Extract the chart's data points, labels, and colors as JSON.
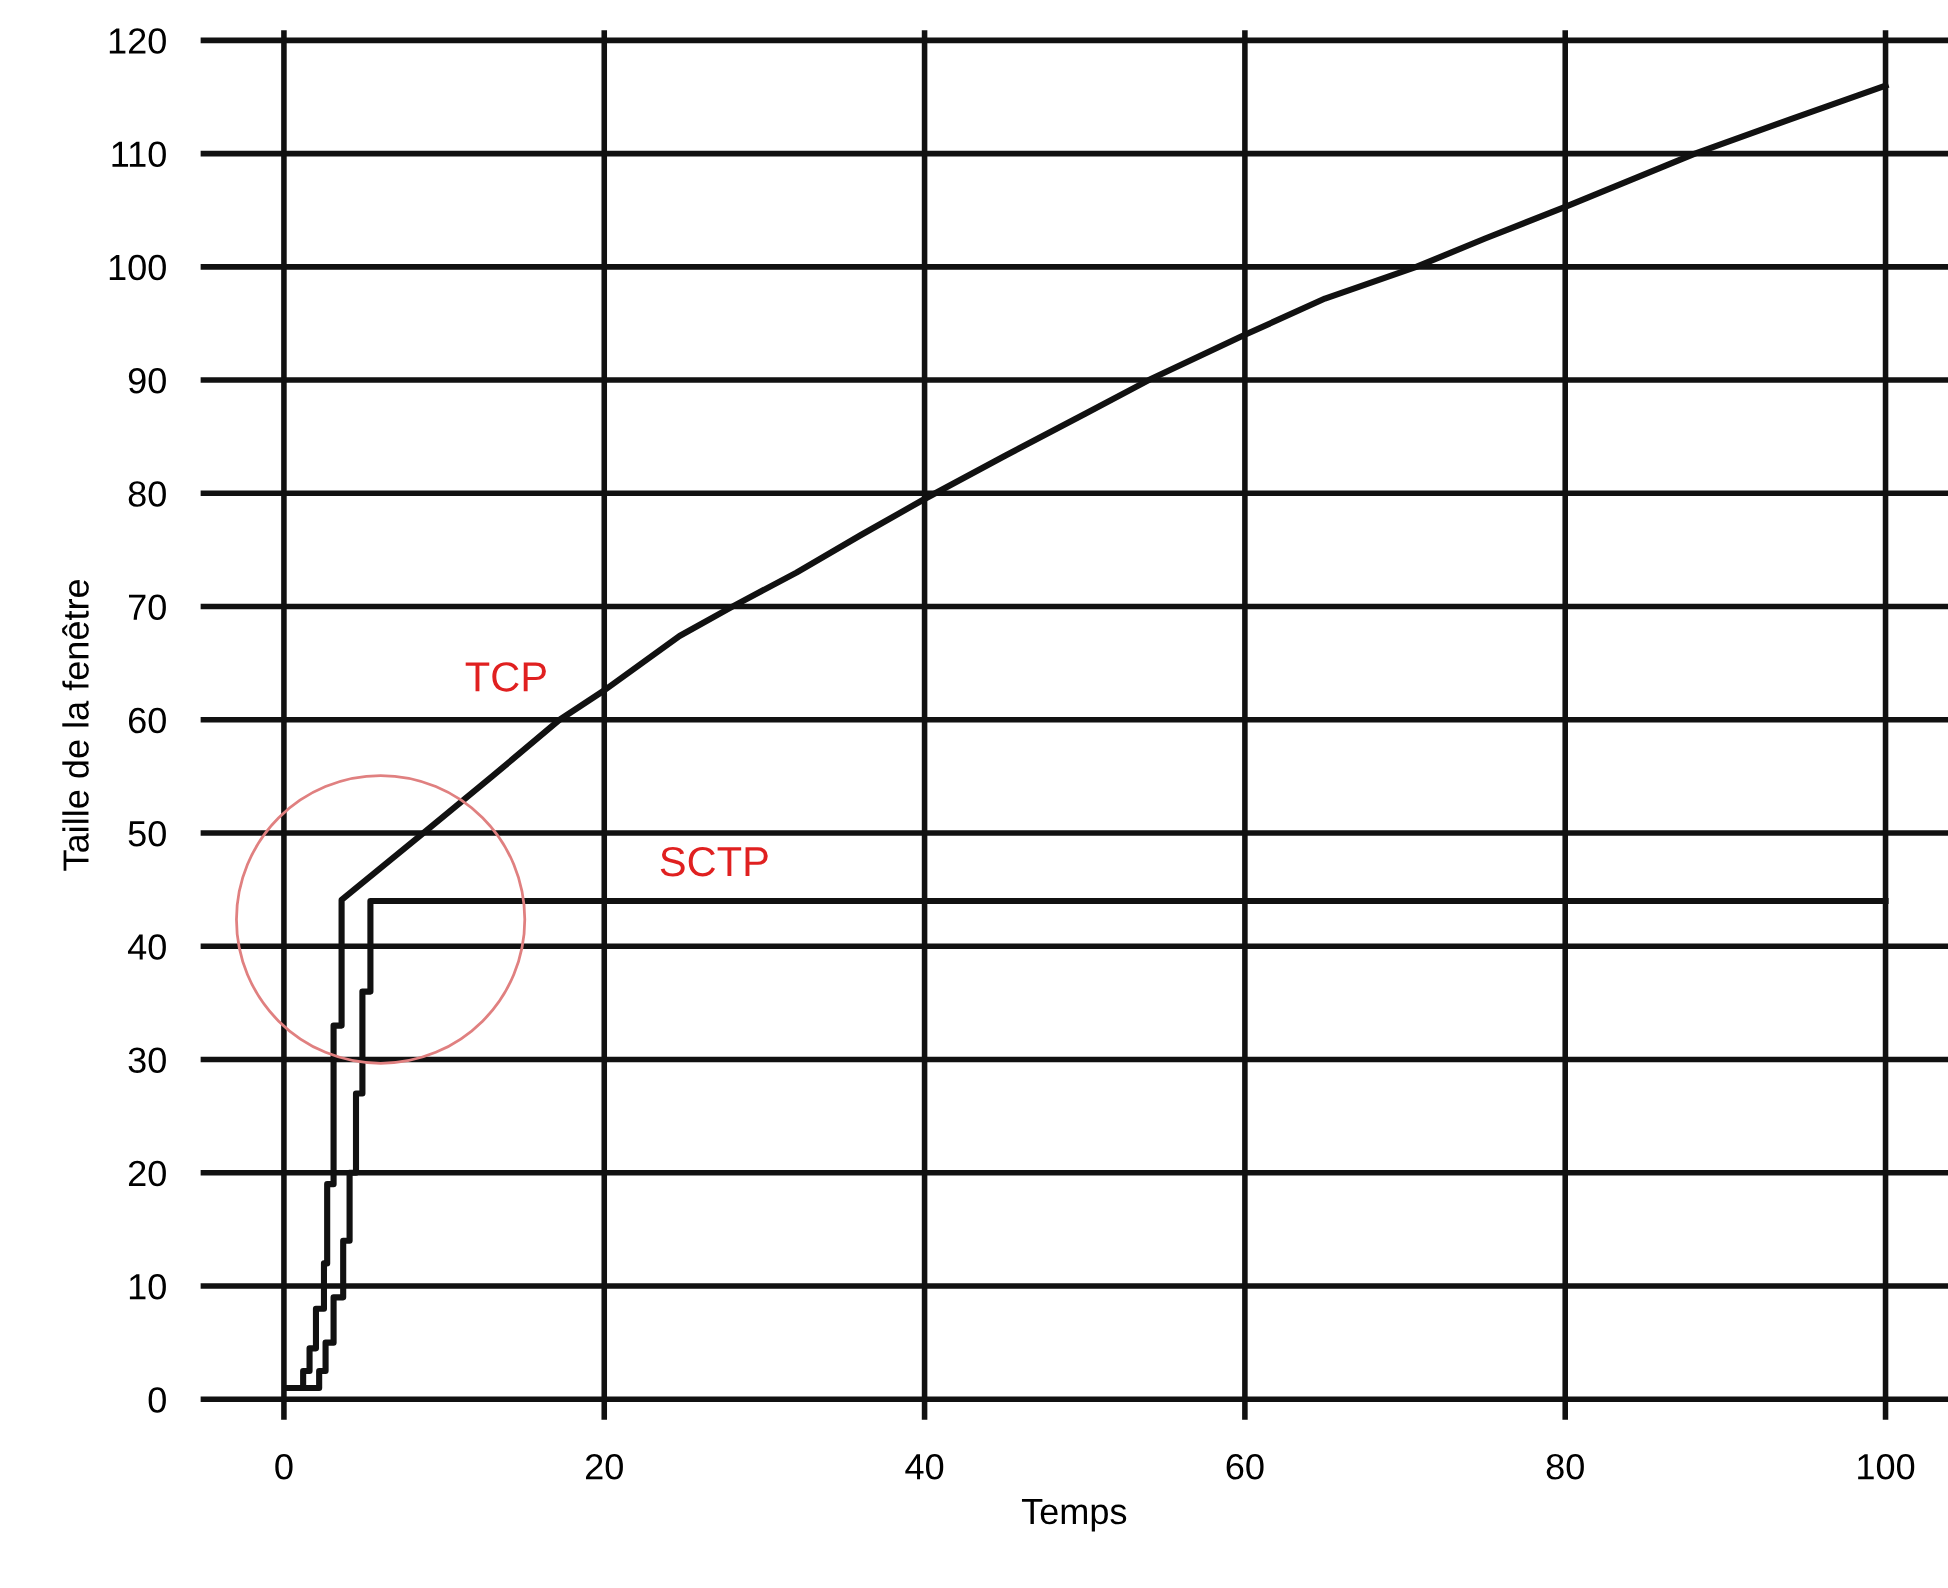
{
  "chart_data": {
    "type": "line",
    "xlabel": "Temps",
    "ylabel": "Taille de la fenêtre",
    "xlim": [
      -5.2,
      103.9
    ],
    "ylim": [
      -1.8,
      120.9
    ],
    "xticks": [
      0,
      20,
      40,
      60,
      80,
      100
    ],
    "yticks": [
      0,
      10,
      20,
      30,
      40,
      50,
      60,
      70,
      80,
      90,
      100,
      110,
      120
    ],
    "grid": true,
    "marker": "none",
    "line_style": "solid",
    "series": [
      {
        "name": "TCP",
        "color": "#111111",
        "x": [
          0.3,
          1.2,
          1.2,
          1.6,
          1.6,
          2.0,
          2.0,
          2.5,
          2.5,
          2.7,
          2.7,
          3.1,
          3.1,
          3.6,
          3.6,
          8.7,
          13,
          17.2,
          20,
          24.7,
          28,
          32,
          36,
          40,
          45,
          50,
          54,
          60,
          65,
          70.7,
          75,
          80,
          88.1,
          94,
          100
        ],
        "values": [
          1,
          1,
          2.5,
          2.5,
          4.5,
          4.5,
          8,
          8,
          12,
          12,
          19,
          19,
          33,
          33,
          44.1,
          50,
          55,
          60,
          62.6,
          67.4,
          70,
          73,
          76.3,
          79.5,
          83.3,
          87,
          90,
          94,
          97.2,
          100,
          102.5,
          105.3,
          110,
          113,
          116
        ]
      },
      {
        "name": "SCTP",
        "color": "#111111",
        "x": [
          1.2,
          2.2,
          2.2,
          2.6,
          2.6,
          3.1,
          3.1,
          3.7,
          3.7,
          4.1,
          4.1,
          4.5,
          4.5,
          4.9,
          4.9,
          5.4,
          5.4,
          100
        ],
        "values": [
          1,
          1,
          2.5,
          2.5,
          5,
          5,
          9,
          9,
          14,
          14,
          20,
          20,
          27,
          27,
          36,
          36,
          44,
          44
        ]
      }
    ]
  }
}
